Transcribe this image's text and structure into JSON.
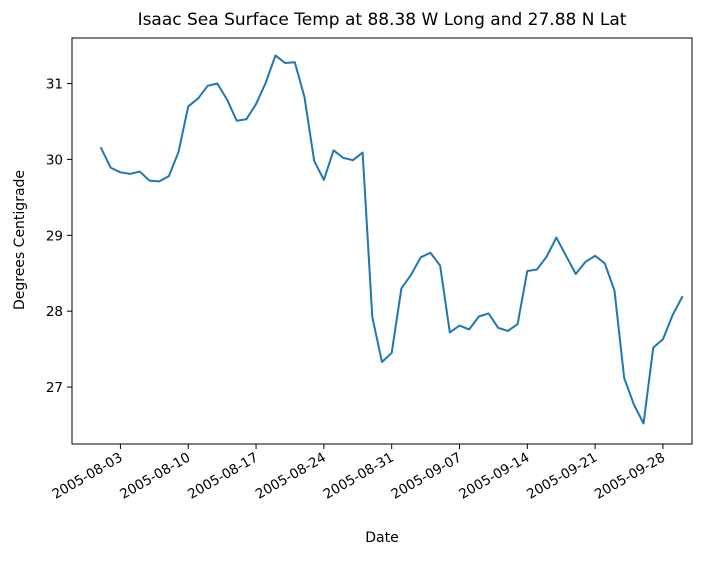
{
  "chart_data": {
    "type": "line",
    "title": "Isaac Sea Surface Temp at 88.38 W Long and 27.88 N Lat",
    "xlabel": "Date",
    "ylabel": "Degrees Centigrade",
    "xlim": [
      "2005-07-29",
      "2005-10-01"
    ],
    "ylim": [
      26.25,
      31.6
    ],
    "grid": false,
    "line_color": "#1f77b4",
    "x_ticks": [
      "2005-08-03",
      "2005-08-10",
      "2005-08-17",
      "2005-08-24",
      "2005-08-31",
      "2005-09-07",
      "2005-09-14",
      "2005-09-21",
      "2005-09-28"
    ],
    "y_ticks": [
      27,
      28,
      29,
      30,
      31
    ],
    "series": [
      {
        "x": [
          "2005-08-01",
          "2005-08-02",
          "2005-08-03",
          "2005-08-04",
          "2005-08-05",
          "2005-08-06",
          "2005-08-07",
          "2005-08-08",
          "2005-08-09",
          "2005-08-10",
          "2005-08-11",
          "2005-08-12",
          "2005-08-13",
          "2005-08-14",
          "2005-08-15",
          "2005-08-16",
          "2005-08-17",
          "2005-08-18",
          "2005-08-19",
          "2005-08-20",
          "2005-08-21",
          "2005-08-22",
          "2005-08-23",
          "2005-08-24",
          "2005-08-25",
          "2005-08-26",
          "2005-08-27",
          "2005-08-28",
          "2005-08-29",
          "2005-08-30",
          "2005-08-31",
          "2005-09-01",
          "2005-09-02",
          "2005-09-03",
          "2005-09-04",
          "2005-09-05",
          "2005-09-06",
          "2005-09-07",
          "2005-09-08",
          "2005-09-09",
          "2005-09-10",
          "2005-09-11",
          "2005-09-12",
          "2005-09-13",
          "2005-09-14",
          "2005-09-15",
          "2005-09-16",
          "2005-09-17",
          "2005-09-18",
          "2005-09-19",
          "2005-09-20",
          "2005-09-21",
          "2005-09-22",
          "2005-09-23",
          "2005-09-24",
          "2005-09-25",
          "2005-09-26",
          "2005-09-27",
          "2005-09-28",
          "2005-09-29",
          "2005-09-30"
        ],
        "values": [
          30.15,
          29.89,
          29.83,
          29.81,
          29.84,
          29.72,
          29.71,
          29.78,
          30.1,
          30.7,
          30.8,
          30.97,
          31.0,
          30.79,
          30.51,
          30.53,
          30.73,
          31.01,
          31.37,
          31.27,
          31.28,
          30.82,
          29.98,
          29.73,
          30.12,
          30.02,
          29.99,
          30.09,
          27.92,
          27.33,
          27.45,
          28.3,
          28.48,
          28.71,
          28.77,
          28.6,
          27.72,
          27.81,
          27.76,
          27.93,
          27.97,
          27.78,
          27.74,
          27.83,
          28.53,
          28.55,
          28.72,
          28.97,
          28.73,
          28.49,
          28.65,
          28.73,
          28.63,
          28.27,
          27.12,
          26.77,
          26.52,
          27.52,
          27.63,
          27.95,
          28.19
        ]
      }
    ]
  }
}
